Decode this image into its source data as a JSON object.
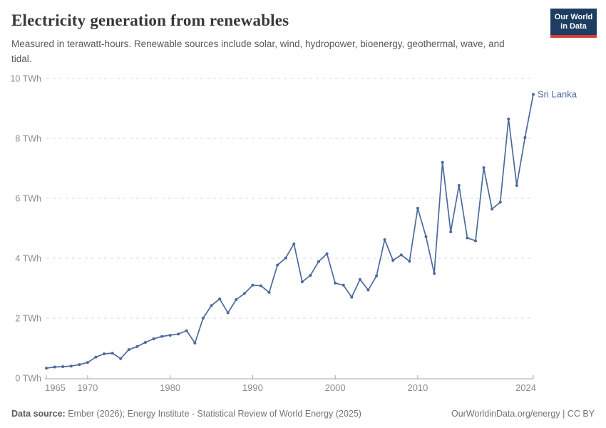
{
  "header": {
    "title": "Electricity generation from renewables",
    "subtitle": "Measured in terawatt-hours. Renewable sources include solar, wind, hydropower, bioenergy, geothermal, wave, and tidal.",
    "logo": {
      "line1": "Our World",
      "line2": "in Data",
      "bg_color": "#1d3d63",
      "accent_color": "#dc3c3c"
    }
  },
  "chart_data": {
    "type": "line",
    "title": "Electricity generation from renewables",
    "unit": "TWh",
    "xlabel": "",
    "ylabel": "",
    "xlim": [
      1965,
      2024
    ],
    "ylim": [
      0,
      10
    ],
    "grid": "horizontal-dashed",
    "legend_position": "end-of-line-label",
    "xticks": [
      1965,
      1970,
      1980,
      1990,
      2000,
      2010,
      2024
    ],
    "xtick_labels": [
      "1965",
      "1970",
      "1980",
      "1990",
      "2000",
      "2010",
      "2024"
    ],
    "yticks": [
      0,
      2,
      4,
      6,
      8,
      10
    ],
    "ytick_labels": [
      "0 TWh",
      "2 TWh",
      "4 TWh",
      "6 TWh",
      "8 TWh",
      "10 TWh"
    ],
    "series": [
      {
        "name": "Sri Lanka",
        "color": "#4C6A9C",
        "x": [
          1965,
          1966,
          1967,
          1968,
          1969,
          1970,
          1971,
          1972,
          1973,
          1974,
          1975,
          1976,
          1977,
          1978,
          1979,
          1980,
          1981,
          1982,
          1983,
          1984,
          1985,
          1986,
          1987,
          1988,
          1989,
          1990,
          1991,
          1992,
          1993,
          1994,
          1995,
          1996,
          1997,
          1998,
          1999,
          2000,
          2001,
          2002,
          2003,
          2004,
          2005,
          2006,
          2007,
          2008,
          2009,
          2010,
          2011,
          2012,
          2013,
          2014,
          2015,
          2016,
          2017,
          2018,
          2019,
          2020,
          2021,
          2022,
          2023,
          2024
        ],
        "values": [
          0.33,
          0.37,
          0.38,
          0.4,
          0.45,
          0.52,
          0.7,
          0.81,
          0.83,
          0.65,
          0.95,
          1.05,
          1.19,
          1.31,
          1.39,
          1.43,
          1.47,
          1.58,
          1.17,
          2.0,
          2.42,
          2.64,
          2.18,
          2.62,
          2.82,
          3.1,
          3.08,
          2.86,
          3.77,
          4.01,
          4.48,
          3.21,
          3.43,
          3.89,
          4.15,
          3.17,
          3.1,
          2.7,
          3.29,
          2.94,
          3.41,
          4.62,
          3.93,
          4.11,
          3.9,
          5.67,
          4.72,
          3.49,
          7.2,
          4.88,
          6.43,
          4.68,
          4.58,
          7.02,
          5.64,
          5.87,
          8.65,
          6.43,
          8.03,
          9.47
        ]
      }
    ]
  },
  "footer": {
    "source_label": "Data source:",
    "source_text": " Ember (2026); Energy Institute - Statistical Review of World Energy (2025)",
    "link_text": "OurWorldinData.org/energy | CC BY"
  },
  "style": {
    "grid_color": "#d9d9d9",
    "axis_color": "#a5a5a5",
    "tick_label_color": "#8c8c8c"
  }
}
